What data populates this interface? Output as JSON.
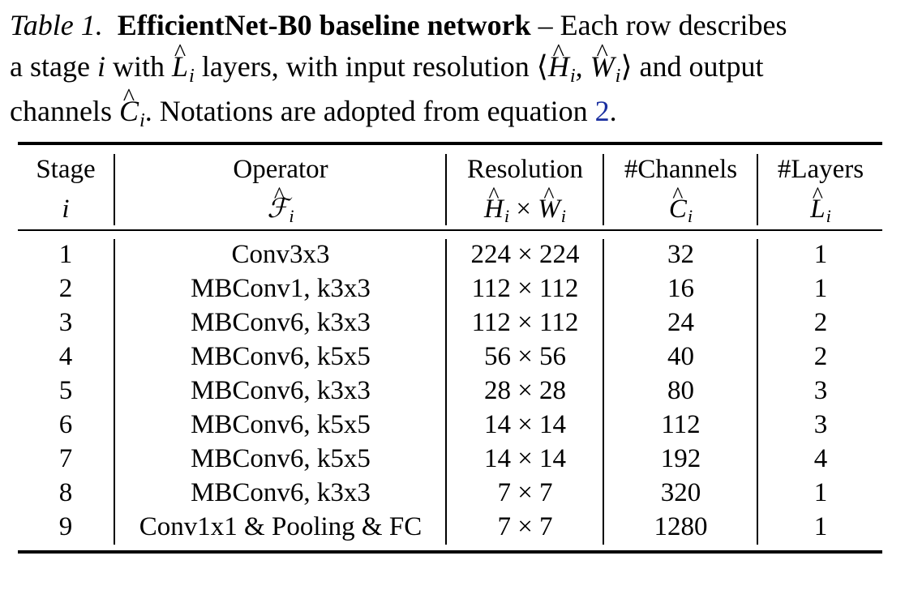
{
  "caption": {
    "label": "Table 1.",
    "title": "EfficientNet-B0 baseline network",
    "text_1": "– Each row describes",
    "text_2": "a stage",
    "text_3": "with",
    "text_4": "layers, with input resolution",
    "text_5": "and output",
    "text_6": "channels",
    "text_7": ". Notations are adopted from equation",
    "ref": "2",
    "text_8": "."
  },
  "headers": {
    "stage": "Stage",
    "operator": "Operator",
    "resolution": "Resolution",
    "channels": "#Channels",
    "layers": "#Layers"
  },
  "rows": [
    {
      "stage": "1",
      "operator": "Conv3x3",
      "resolution": "224 × 224",
      "channels": "32",
      "layers": "1"
    },
    {
      "stage": "2",
      "operator": "MBConv1, k3x3",
      "resolution": "112 × 112",
      "channels": "16",
      "layers": "1"
    },
    {
      "stage": "3",
      "operator": "MBConv6, k3x3",
      "resolution": "112 × 112",
      "channels": "24",
      "layers": "2"
    },
    {
      "stage": "4",
      "operator": "MBConv6, k5x5",
      "resolution": "56 × 56",
      "channels": "40",
      "layers": "2"
    },
    {
      "stage": "5",
      "operator": "MBConv6, k3x3",
      "resolution": "28 × 28",
      "channels": "80",
      "layers": "3"
    },
    {
      "stage": "6",
      "operator": "MBConv6, k5x5",
      "resolution": "14 × 14",
      "channels": "112",
      "layers": "3"
    },
    {
      "stage": "7",
      "operator": "MBConv6, k5x5",
      "resolution": "14 × 14",
      "channels": "192",
      "layers": "4"
    },
    {
      "stage": "8",
      "operator": "MBConv6, k3x3",
      "resolution": "7 × 7",
      "channels": "320",
      "layers": "1"
    },
    {
      "stage": "9",
      "operator": "Conv1x1 & Pooling & FC",
      "resolution": "7 × 7",
      "channels": "1280",
      "layers": "1"
    }
  ]
}
